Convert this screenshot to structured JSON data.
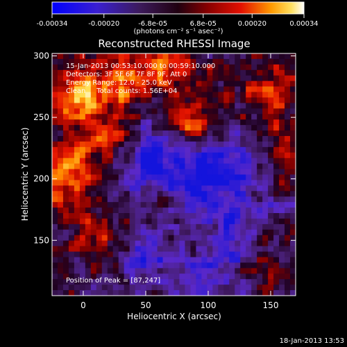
{
  "footer": {
    "timestamp": "18-Jan-2013 13:53"
  },
  "colorbar": {
    "tick_labels": [
      "-0.00034",
      "-0.00020",
      "-6.8e-05",
      "6.8e-05",
      "0.00020",
      "0.00034"
    ],
    "range": [
      -0.00034,
      0.00034
    ],
    "units_label": "(photons cm⁻² s⁻¹ asec⁻²)"
  },
  "chart_data": {
    "type": "heatmap",
    "title": "Reconstructed RHESSI Image",
    "xlabel": "Heliocentric X (arcsec)",
    "ylabel": "Heliocentric Y (arcsec)",
    "xlim": [
      -25,
      170
    ],
    "ylim": [
      105,
      302
    ],
    "xticks": [
      0,
      50,
      100,
      150
    ],
    "yticks": [
      150,
      200,
      250,
      300
    ],
    "xtick_labels": [
      "0",
      "50",
      "100",
      "150"
    ],
    "ytick_labels": [
      "150",
      "200",
      "250",
      "300"
    ],
    "annotations": [
      "15-Jan-2013 00:53:10.000 to 00:59:10.000",
      "Detectors: 3F 5F 6F 7F 8F 9F, Att 0",
      "Energy Range: 12.0 - 25.0 keV",
      "Clean     Total counts: 1.56E+04"
    ],
    "peak_label": "Position of Peak = [87,247]",
    "peak_position": [
      87,
      247
    ],
    "colormap": "blue-purple-red-orange-yellow-white"
  }
}
